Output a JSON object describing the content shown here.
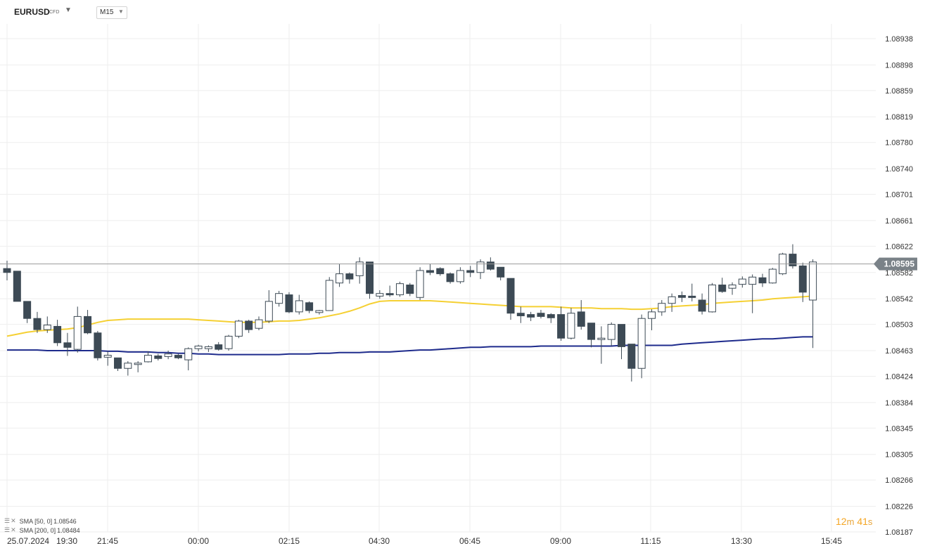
{
  "toolbar": {
    "symbol": "EURUSD",
    "symbol_tag": "CFD",
    "timeframe": "M15",
    "caret_icon": "chevron-down-icon"
  },
  "chart_data": {
    "type": "candlestick",
    "title": "",
    "ylim": [
      1.08187,
      1.08938
    ],
    "price_ticks": [
      "1.08938",
      "1.08898",
      "1.08859",
      "1.08819",
      "1.08780",
      "1.08740",
      "1.08701",
      "1.08661",
      "1.08622",
      "1.08582",
      "1.08542",
      "1.08503",
      "1.08463",
      "1.08424",
      "1.08384",
      "1.08345",
      "1.08305",
      "1.08266",
      "1.08226",
      "1.08187"
    ],
    "time_ticks": [
      "25.07.2024",
      "19:30",
      "21:45",
      "00:00",
      "02:15",
      "04:30",
      "06:45",
      "09:00",
      "11:15",
      "13:30",
      "15:45"
    ],
    "current_price": "1.08595",
    "candles": [
      {
        "o": 1.08588,
        "h": 1.086,
        "l": 1.0857,
        "c": 1.08582
      },
      {
        "o": 1.08584,
        "h": 1.08584,
        "l": 1.08538,
        "c": 1.08538
      },
      {
        "o": 1.08538,
        "h": 1.08538,
        "l": 1.08505,
        "c": 1.08512
      },
      {
        "o": 1.08512,
        "h": 1.08522,
        "l": 1.0849,
        "c": 1.08495
      },
      {
        "o": 1.08495,
        "h": 1.08515,
        "l": 1.0849,
        "c": 1.08502
      },
      {
        "o": 1.085,
        "h": 1.0851,
        "l": 1.0847,
        "c": 1.08475
      },
      {
        "o": 1.08475,
        "h": 1.0849,
        "l": 1.08455,
        "c": 1.08468
      },
      {
        "o": 1.08465,
        "h": 1.0853,
        "l": 1.0846,
        "c": 1.08515
      },
      {
        "o": 1.08515,
        "h": 1.08525,
        "l": 1.08488,
        "c": 1.0849
      },
      {
        "o": 1.0849,
        "h": 1.08493,
        "l": 1.08448,
        "c": 1.08452
      },
      {
        "o": 1.08453,
        "h": 1.08462,
        "l": 1.0844,
        "c": 1.08456
      },
      {
        "o": 1.08452,
        "h": 1.08452,
        "l": 1.08432,
        "c": 1.08436
      },
      {
        "o": 1.08436,
        "h": 1.08447,
        "l": 1.08425,
        "c": 1.08444
      },
      {
        "o": 1.08442,
        "h": 1.08447,
        "l": 1.0843,
        "c": 1.08444
      },
      {
        "o": 1.08446,
        "h": 1.08462,
        "l": 1.08445,
        "c": 1.08456
      },
      {
        "o": 1.08455,
        "h": 1.08458,
        "l": 1.08448,
        "c": 1.08451
      },
      {
        "o": 1.08454,
        "h": 1.08463,
        "l": 1.0845,
        "c": 1.08458
      },
      {
        "o": 1.08456,
        "h": 1.08458,
        "l": 1.0845,
        "c": 1.08452
      },
      {
        "o": 1.08449,
        "h": 1.08468,
        "l": 1.08433,
        "c": 1.08466
      },
      {
        "o": 1.08466,
        "h": 1.08472,
        "l": 1.08462,
        "c": 1.0847
      },
      {
        "o": 1.08466,
        "h": 1.08471,
        "l": 1.08461,
        "c": 1.08469
      },
      {
        "o": 1.08472,
        "h": 1.08476,
        "l": 1.08463,
        "c": 1.08465
      },
      {
        "o": 1.08466,
        "h": 1.08487,
        "l": 1.08463,
        "c": 1.08485
      },
      {
        "o": 1.08485,
        "h": 1.0851,
        "l": 1.08482,
        "c": 1.08508
      },
      {
        "o": 1.08508,
        "h": 1.0851,
        "l": 1.0849,
        "c": 1.08495
      },
      {
        "o": 1.08497,
        "h": 1.08515,
        "l": 1.08494,
        "c": 1.0851
      },
      {
        "o": 1.08508,
        "h": 1.08555,
        "l": 1.08505,
        "c": 1.08538
      },
      {
        "o": 1.08535,
        "h": 1.08554,
        "l": 1.0853,
        "c": 1.0855
      },
      {
        "o": 1.08548,
        "h": 1.08552,
        "l": 1.0852,
        "c": 1.08522
      },
      {
        "o": 1.08522,
        "h": 1.08548,
        "l": 1.08518,
        "c": 1.08539
      },
      {
        "o": 1.08536,
        "h": 1.08538,
        "l": 1.0852,
        "c": 1.08524
      },
      {
        "o": 1.08521,
        "h": 1.08525,
        "l": 1.08518,
        "c": 1.08524
      },
      {
        "o": 1.08524,
        "h": 1.08575,
        "l": 1.08524,
        "c": 1.0857
      },
      {
        "o": 1.08566,
        "h": 1.08595,
        "l": 1.0856,
        "c": 1.0858
      },
      {
        "o": 1.0858,
        "h": 1.08582,
        "l": 1.08565,
        "c": 1.08572
      },
      {
        "o": 1.08577,
        "h": 1.08605,
        "l": 1.08565,
        "c": 1.08598
      },
      {
        "o": 1.08598,
        "h": 1.08598,
        "l": 1.08542,
        "c": 1.0855
      },
      {
        "o": 1.08546,
        "h": 1.08555,
        "l": 1.08542,
        "c": 1.0855
      },
      {
        "o": 1.0855,
        "h": 1.08562,
        "l": 1.08545,
        "c": 1.08548
      },
      {
        "o": 1.08548,
        "h": 1.08568,
        "l": 1.08545,
        "c": 1.08565
      },
      {
        "o": 1.08563,
        "h": 1.08566,
        "l": 1.08546,
        "c": 1.0855
      },
      {
        "o": 1.08544,
        "h": 1.0859,
        "l": 1.0854,
        "c": 1.08585
      },
      {
        "o": 1.08585,
        "h": 1.08595,
        "l": 1.08578,
        "c": 1.08582
      },
      {
        "o": 1.08588,
        "h": 1.0859,
        "l": 1.08577,
        "c": 1.0858
      },
      {
        "o": 1.0858,
        "h": 1.08582,
        "l": 1.08565,
        "c": 1.08568
      },
      {
        "o": 1.08568,
        "h": 1.0859,
        "l": 1.08565,
        "c": 1.08585
      },
      {
        "o": 1.08585,
        "h": 1.08592,
        "l": 1.08575,
        "c": 1.08582
      },
      {
        "o": 1.08582,
        "h": 1.08602,
        "l": 1.08572,
        "c": 1.08598
      },
      {
        "o": 1.08598,
        "h": 1.08605,
        "l": 1.08585,
        "c": 1.08587
      },
      {
        "o": 1.0859,
        "h": 1.0859,
        "l": 1.0857,
        "c": 1.08575
      },
      {
        "o": 1.08573,
        "h": 1.08573,
        "l": 1.0851,
        "c": 1.0852
      },
      {
        "o": 1.0852,
        "h": 1.0853,
        "l": 1.08505,
        "c": 1.08516
      },
      {
        "o": 1.08518,
        "h": 1.08522,
        "l": 1.08508,
        "c": 1.08514
      },
      {
        "o": 1.0852,
        "h": 1.08525,
        "l": 1.08512,
        "c": 1.08515
      },
      {
        "o": 1.08518,
        "h": 1.0852,
        "l": 1.08505,
        "c": 1.08513
      },
      {
        "o": 1.08518,
        "h": 1.0853,
        "l": 1.08478,
        "c": 1.08482
      },
      {
        "o": 1.08482,
        "h": 1.08528,
        "l": 1.0848,
        "c": 1.0852
      },
      {
        "o": 1.08522,
        "h": 1.0854,
        "l": 1.08495,
        "c": 1.085
      },
      {
        "o": 1.08505,
        "h": 1.08505,
        "l": 1.08468,
        "c": 1.0848
      },
      {
        "o": 1.0848,
        "h": 1.085,
        "l": 1.08443,
        "c": 1.08482
      },
      {
        "o": 1.0848,
        "h": 1.08506,
        "l": 1.0847,
        "c": 1.08503
      },
      {
        "o": 1.08503,
        "h": 1.08503,
        "l": 1.0845,
        "c": 1.08469
      },
      {
        "o": 1.08473,
        "h": 1.08473,
        "l": 1.08416,
        "c": 1.08436
      },
      {
        "o": 1.08436,
        "h": 1.08518,
        "l": 1.08421,
        "c": 1.08512
      },
      {
        "o": 1.08512,
        "h": 1.08526,
        "l": 1.08494,
        "c": 1.08522
      },
      {
        "o": 1.08522,
        "h": 1.0854,
        "l": 1.08516,
        "c": 1.08535
      },
      {
        "o": 1.08535,
        "h": 1.0855,
        "l": 1.08522,
        "c": 1.08545
      },
      {
        "o": 1.08547,
        "h": 1.08553,
        "l": 1.08537,
        "c": 1.08544
      },
      {
        "o": 1.08546,
        "h": 1.08565,
        "l": 1.08538,
        "c": 1.08545
      },
      {
        "o": 1.0854,
        "h": 1.0855,
        "l": 1.08518,
        "c": 1.08523
      },
      {
        "o": 1.08522,
        "h": 1.08566,
        "l": 1.08521,
        "c": 1.08563
      },
      {
        "o": 1.08563,
        "h": 1.08574,
        "l": 1.08551,
        "c": 1.08553
      },
      {
        "o": 1.08558,
        "h": 1.08567,
        "l": 1.08548,
        "c": 1.08563
      },
      {
        "o": 1.08564,
        "h": 1.08576,
        "l": 1.08559,
        "c": 1.08572
      },
      {
        "o": 1.08564,
        "h": 1.08579,
        "l": 1.0852,
        "c": 1.08575
      },
      {
        "o": 1.08574,
        "h": 1.0858,
        "l": 1.0856,
        "c": 1.08566
      },
      {
        "o": 1.08566,
        "h": 1.08589,
        "l": 1.08565,
        "c": 1.08587
      },
      {
        "o": 1.0858,
        "h": 1.08612,
        "l": 1.08578,
        "c": 1.0861
      },
      {
        "o": 1.0861,
        "h": 1.08625,
        "l": 1.08588,
        "c": 1.08592
      },
      {
        "o": 1.08592,
        "h": 1.08597,
        "l": 1.08537,
        "c": 1.08552
      },
      {
        "o": 1.0854,
        "h": 1.08602,
        "l": 1.08467,
        "c": 1.08598
      }
    ],
    "sma50": [
      1.08485,
      1.08488,
      1.08491,
      1.08493,
      1.08494,
      1.08495,
      1.08496,
      1.08498,
      1.08502,
      1.08506,
      1.08509,
      1.0851,
      1.08511,
      1.08511,
      1.08511,
      1.08511,
      1.08511,
      1.08511,
      1.08511,
      1.0851,
      1.08509,
      1.08508,
      1.08507,
      1.08506,
      1.08506,
      1.08506,
      1.08507,
      1.08508,
      1.08508,
      1.08509,
      1.08511,
      1.08513,
      1.08516,
      1.08519,
      1.08523,
      1.08528,
      1.08534,
      1.08538,
      1.08539,
      1.08539,
      1.08539,
      1.08539,
      1.08539,
      1.08538,
      1.08537,
      1.08536,
      1.08535,
      1.08534,
      1.08533,
      1.08532,
      1.08531,
      1.0853,
      1.0853,
      1.0853,
      1.0853,
      1.08529,
      1.08528,
      1.08528,
      1.08528,
      1.08527,
      1.08527,
      1.08527,
      1.08526,
      1.08526,
      1.08527,
      1.08528,
      1.0853,
      1.08531,
      1.08532,
      1.08533,
      1.08535,
      1.08536,
      1.08537,
      1.08538,
      1.08539,
      1.0854,
      1.08542,
      1.08543,
      1.08544,
      1.08545,
      1.08546
    ],
    "sma200": [
      1.08464,
      1.08464,
      1.08464,
      1.08464,
      1.08463,
      1.08463,
      1.08463,
      1.08463,
      1.08463,
      1.08463,
      1.08462,
      1.08462,
      1.08461,
      1.08461,
      1.08461,
      1.0846,
      1.0846,
      1.08459,
      1.08459,
      1.08458,
      1.08458,
      1.08457,
      1.08457,
      1.08457,
      1.08457,
      1.08457,
      1.08457,
      1.08457,
      1.08458,
      1.08458,
      1.08458,
      1.08459,
      1.08459,
      1.0846,
      1.0846,
      1.0846,
      1.08461,
      1.08461,
      1.08461,
      1.08462,
      1.08463,
      1.08464,
      1.08464,
      1.08465,
      1.08466,
      1.08467,
      1.08468,
      1.08468,
      1.08469,
      1.08469,
      1.08469,
      1.08469,
      1.08469,
      1.0847,
      1.0847,
      1.0847,
      1.0847,
      1.0847,
      1.0847,
      1.0847,
      1.0847,
      1.08471,
      1.08471,
      1.08471,
      1.08471,
      1.08471,
      1.08471,
      1.08473,
      1.08474,
      1.08475,
      1.08476,
      1.08477,
      1.08478,
      1.08479,
      1.0848,
      1.08481,
      1.08481,
      1.08482,
      1.08483,
      1.08484,
      1.08484
    ],
    "indicators": [
      {
        "name": "SMA",
        "params": "[50, 0]",
        "value": "1.08546",
        "color": "#f5d033"
      },
      {
        "name": "SMA",
        "params": "[200, 0]",
        "value": "1.08484",
        "color": "#1e2b8c"
      }
    ],
    "countdown": {
      "minutes": "12",
      "minutes_unit": "m",
      "seconds": "41",
      "seconds_unit": "s"
    },
    "colors": {
      "bear": "#3d4a55",
      "bull": "#ffffff",
      "wick": "#3d4a55",
      "current_line": "#9a9a9a",
      "price_tag": "#7a8288",
      "grid": "#eeeeee"
    }
  }
}
